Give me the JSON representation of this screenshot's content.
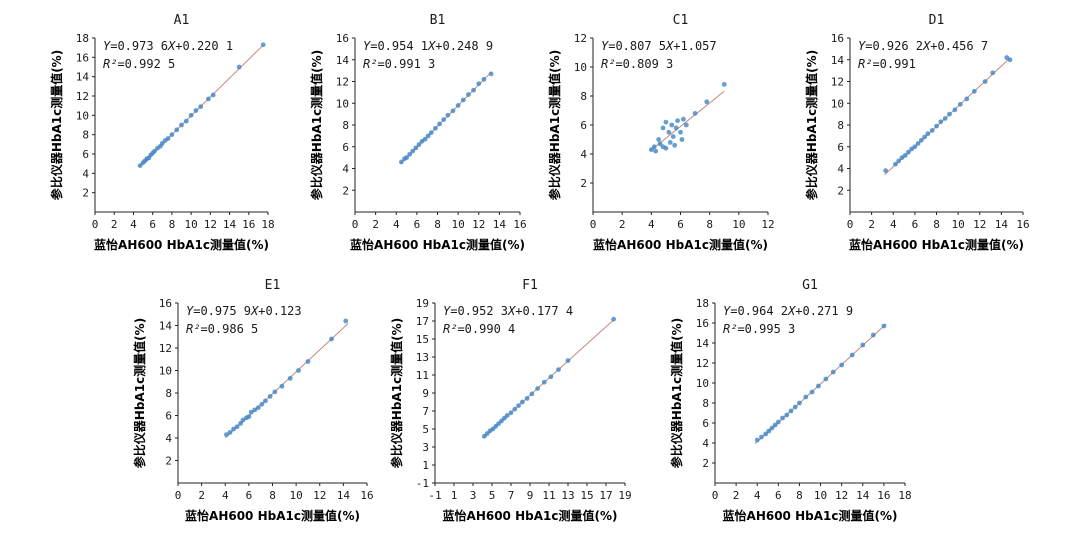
{
  "chart_data": [
    {
      "id": "A1",
      "type": "scatter",
      "title": "A1",
      "xlabel": "蓝怡AH600 HbA1c测量值(%)",
      "ylabel": "参比仪器HbA1c测量值(%)",
      "xlim": [
        0,
        18
      ],
      "ylim": [
        0,
        18
      ],
      "xticks": [
        "0",
        "2",
        "4",
        "6",
        "8",
        "10",
        "12",
        "14",
        "16",
        "18"
      ],
      "yticks": [
        "2",
        "4",
        "6",
        "8",
        "10",
        "12",
        "14",
        "16",
        "18"
      ],
      "eq_lhs": "Y",
      "eq_mid": "=0.973 6",
      "eq_x": "X",
      "eq_rhs": "+0.220 1",
      "r2_label": "R²",
      "r2_value": "=0.992 5",
      "slope": 0.9736,
      "intercept": 0.2201,
      "range": [
        4.6,
        17.5
      ],
      "points": [
        [
          4.7,
          4.8
        ],
        [
          5.0,
          5.1
        ],
        [
          5.2,
          5.3
        ],
        [
          5.4,
          5.5
        ],
        [
          5.6,
          5.6
        ],
        [
          5.8,
          5.9
        ],
        [
          6.0,
          6.1
        ],
        [
          6.2,
          6.3
        ],
        [
          6.5,
          6.6
        ],
        [
          6.8,
          6.8
        ],
        [
          7.0,
          7.1
        ],
        [
          7.3,
          7.4
        ],
        [
          7.6,
          7.6
        ],
        [
          8.0,
          8.0
        ],
        [
          8.5,
          8.5
        ],
        [
          9.0,
          9.0
        ],
        [
          9.5,
          9.4
        ],
        [
          10.0,
          10.0
        ],
        [
          10.5,
          10.5
        ],
        [
          11.0,
          10.9
        ],
        [
          11.8,
          11.7
        ],
        [
          12.3,
          12.1
        ],
        [
          15.0,
          15.0
        ],
        [
          17.5,
          17.3
        ]
      ]
    },
    {
      "id": "B1",
      "type": "scatter",
      "title": "B1",
      "xlabel": "蓝怡AH600 HbA1c测量值(%)",
      "ylabel": "参比仪器HbA1c测量值(%)",
      "xlim": [
        0,
        16
      ],
      "ylim": [
        0,
        16
      ],
      "xticks": [
        "0",
        "2",
        "4",
        "6",
        "8",
        "10",
        "12",
        "14",
        "16"
      ],
      "yticks": [
        "2",
        "4",
        "6",
        "8",
        "10",
        "12",
        "14",
        "16"
      ],
      "eq_lhs": "Y",
      "eq_mid": "=0.954 1",
      "eq_x": "X",
      "eq_rhs": "+0.248 9",
      "r2_label": "R²",
      "r2_value": "=0.991 3",
      "slope": 0.9541,
      "intercept": 0.2489,
      "range": [
        4.4,
        13.2
      ],
      "points": [
        [
          4.5,
          4.6
        ],
        [
          4.8,
          4.9
        ],
        [
          5.0,
          5.0
        ],
        [
          5.3,
          5.3
        ],
        [
          5.6,
          5.6
        ],
        [
          5.9,
          5.9
        ],
        [
          6.2,
          6.2
        ],
        [
          6.5,
          6.5
        ],
        [
          6.8,
          6.7
        ],
        [
          7.1,
          7.0
        ],
        [
          7.4,
          7.3
        ],
        [
          7.8,
          7.7
        ],
        [
          8.2,
          8.1
        ],
        [
          8.6,
          8.5
        ],
        [
          9.0,
          8.9
        ],
        [
          9.5,
          9.3
        ],
        [
          10.0,
          9.8
        ],
        [
          10.5,
          10.3
        ],
        [
          11.0,
          10.8
        ],
        [
          11.5,
          11.2
        ],
        [
          12.0,
          11.8
        ],
        [
          12.5,
          12.2
        ],
        [
          13.2,
          12.7
        ]
      ]
    },
    {
      "id": "C1",
      "type": "scatter",
      "title": "C1",
      "xlabel": "蓝怡AH600 HbA1c测量值(%)",
      "ylabel": "参比仪器HbA1c测量值(%)",
      "xlim": [
        0,
        12
      ],
      "ylim": [
        0,
        12
      ],
      "xticks": [
        "0",
        "2",
        "4",
        "6",
        "8",
        "10",
        "12"
      ],
      "yticks": [
        "2",
        "4",
        "6",
        "8",
        "10",
        "12"
      ],
      "eq_lhs": "Y",
      "eq_mid": "=0.807 5",
      "eq_x": "X",
      "eq_rhs": "+1.057",
      "r2_label": "R²",
      "r2_value": "=0.809 3",
      "slope": 0.8075,
      "intercept": 1.057,
      "range": [
        4.0,
        9.0
      ],
      "points": [
        [
          4.0,
          4.3
        ],
        [
          4.2,
          4.5
        ],
        [
          4.3,
          4.2
        ],
        [
          4.5,
          5.0
        ],
        [
          4.6,
          4.7
        ],
        [
          4.8,
          4.5
        ],
        [
          4.8,
          5.8
        ],
        [
          5.0,
          6.2
        ],
        [
          5.0,
          4.4
        ],
        [
          5.2,
          5.5
        ],
        [
          5.3,
          4.8
        ],
        [
          5.4,
          6.0
        ],
        [
          5.5,
          5.2
        ],
        [
          5.6,
          4.6
        ],
        [
          5.7,
          5.8
        ],
        [
          5.8,
          6.3
        ],
        [
          6.0,
          5.5
        ],
        [
          6.1,
          5.0
        ],
        [
          6.2,
          6.4
        ],
        [
          6.4,
          6.0
        ],
        [
          7.0,
          6.8
        ],
        [
          7.8,
          7.6
        ],
        [
          9.0,
          8.8
        ]
      ]
    },
    {
      "id": "D1",
      "type": "scatter",
      "title": "D1",
      "xlabel": "蓝怡AH600 HbA1c测量值(%)",
      "ylabel": "参比仪器HbA1c测量值(%)",
      "xlim": [
        0,
        16
      ],
      "ylim": [
        0,
        16
      ],
      "xticks": [
        "0",
        "2",
        "4",
        "6",
        "8",
        "10",
        "12",
        "14",
        "16"
      ],
      "yticks": [
        "2",
        "4",
        "6",
        "8",
        "10",
        "12",
        "14",
        "16"
      ],
      "eq_lhs": "Y",
      "eq_mid": "=0.926 2",
      "eq_x": "X",
      "eq_rhs": "+0.456 7",
      "r2_label": "R²",
      "r2_value": "=0.991",
      "slope": 0.9262,
      "intercept": 0.4567,
      "range": [
        3.2,
        14.8
      ],
      "points": [
        [
          3.3,
          3.8
        ],
        [
          4.2,
          4.4
        ],
        [
          4.5,
          4.7
        ],
        [
          4.8,
          5.0
        ],
        [
          5.1,
          5.2
        ],
        [
          5.4,
          5.5
        ],
        [
          5.7,
          5.8
        ],
        [
          6.0,
          6.0
        ],
        [
          6.3,
          6.3
        ],
        [
          6.6,
          6.6
        ],
        [
          6.9,
          6.9
        ],
        [
          7.2,
          7.2
        ],
        [
          7.6,
          7.5
        ],
        [
          8.0,
          7.9
        ],
        [
          8.4,
          8.3
        ],
        [
          8.8,
          8.6
        ],
        [
          9.2,
          9.0
        ],
        [
          9.7,
          9.4
        ],
        [
          10.2,
          9.9
        ],
        [
          10.8,
          10.4
        ],
        [
          11.5,
          11.1
        ],
        [
          12.5,
          12.0
        ],
        [
          13.2,
          12.8
        ],
        [
          14.5,
          14.2
        ],
        [
          14.8,
          14.0
        ]
      ]
    },
    {
      "id": "E1",
      "type": "scatter",
      "title": "E1",
      "xlabel": "蓝怡AH600 HbA1c测量值(%)",
      "ylabel": "参比仪器HbA1c测量值(%)",
      "xlim": [
        0,
        16
      ],
      "ylim": [
        0,
        16
      ],
      "xticks": [
        "0",
        "2",
        "4",
        "6",
        "8",
        "10",
        "12",
        "14",
        "16"
      ],
      "yticks": [
        "2",
        "4",
        "6",
        "8",
        "10",
        "12",
        "14",
        "16"
      ],
      "eq_lhs": "Y",
      "eq_mid": "=0.975 9",
      "eq_x": "X",
      "eq_rhs": "+0.123",
      "r2_label": "R²",
      "r2_value": "=0.986 5",
      "slope": 0.9759,
      "intercept": 0.123,
      "range": [
        4.0,
        14.4
      ],
      "points": [
        [
          4.1,
          4.3
        ],
        [
          4.4,
          4.5
        ],
        [
          4.7,
          4.8
        ],
        [
          5.0,
          5.0
        ],
        [
          5.3,
          5.3
        ],
        [
          5.5,
          5.6
        ],
        [
          5.8,
          5.8
        ],
        [
          6.0,
          5.9
        ],
        [
          6.2,
          6.3
        ],
        [
          6.5,
          6.5
        ],
        [
          6.8,
          6.7
        ],
        [
          7.1,
          7.0
        ],
        [
          7.4,
          7.3
        ],
        [
          7.8,
          7.7
        ],
        [
          8.2,
          8.1
        ],
        [
          8.8,
          8.6
        ],
        [
          9.5,
          9.3
        ],
        [
          10.2,
          10.0
        ],
        [
          11.0,
          10.8
        ],
        [
          13.0,
          12.8
        ],
        [
          14.2,
          14.4
        ]
      ]
    },
    {
      "id": "F1",
      "type": "scatter",
      "title": "F1",
      "xlabel": "蓝怡AH600 HbA1c测量值(%)",
      "ylabel": "参比仪器HbA1c测量值(%)",
      "xlim": [
        -1,
        19
      ],
      "ylim": [
        -1,
        19
      ],
      "xticks": [
        "-1",
        "1",
        "3",
        "5",
        "7",
        "9",
        "11",
        "13",
        "15",
        "17",
        "19"
      ],
      "yticks": [
        "-1",
        "1",
        "3",
        "5",
        "7",
        "9",
        "11",
        "13",
        "15",
        "17",
        "19"
      ],
      "eq_lhs": "Y",
      "eq_mid": "=0.952 3",
      "eq_x": "X",
      "eq_rhs": "+0.177 4",
      "r2_label": "R²",
      "r2_value": "=0.990 4",
      "slope": 0.9523,
      "intercept": 0.1774,
      "range": [
        4.0,
        17.8
      ],
      "points": [
        [
          4.2,
          4.2
        ],
        [
          4.5,
          4.5
        ],
        [
          4.8,
          4.8
        ],
        [
          5.1,
          5.0
        ],
        [
          5.4,
          5.3
        ],
        [
          5.7,
          5.6
        ],
        [
          6.0,
          5.9
        ],
        [
          6.3,
          6.2
        ],
        [
          6.6,
          6.5
        ],
        [
          7.0,
          6.8
        ],
        [
          7.4,
          7.2
        ],
        [
          7.8,
          7.6
        ],
        [
          8.2,
          8.0
        ],
        [
          8.7,
          8.4
        ],
        [
          9.2,
          8.9
        ],
        [
          9.8,
          9.5
        ],
        [
          10.5,
          10.2
        ],
        [
          11.2,
          10.8
        ],
        [
          12.0,
          11.6
        ],
        [
          13.0,
          12.6
        ],
        [
          17.8,
          17.2
        ]
      ]
    },
    {
      "id": "G1",
      "type": "scatter",
      "title": "G1",
      "xlabel": "蓝怡AH600 HbA1c测量值(%)",
      "ylabel": "参比仪器HbA1c测量值(%)",
      "xlim": [
        0,
        18
      ],
      "ylim": [
        0,
        18
      ],
      "xticks": [
        "0",
        "2",
        "4",
        "6",
        "8",
        "10",
        "12",
        "14",
        "16",
        "18"
      ],
      "yticks": [
        "2",
        "4",
        "6",
        "8",
        "10",
        "12",
        "14",
        "16",
        "18"
      ],
      "eq_lhs": "Y",
      "eq_mid": "=0.964 2",
      "eq_x": "X",
      "eq_rhs": "+0.271 9",
      "r2_label": "R²",
      "r2_value": "=0.995 3",
      "slope": 0.9642,
      "intercept": 0.2719,
      "range": [
        3.8,
        16.2
      ],
      "points": [
        [
          4.0,
          4.3
        ],
        [
          4.4,
          4.6
        ],
        [
          4.8,
          4.9
        ],
        [
          5.1,
          5.2
        ],
        [
          5.4,
          5.5
        ],
        [
          5.7,
          5.8
        ],
        [
          6.0,
          6.1
        ],
        [
          6.4,
          6.5
        ],
        [
          6.8,
          6.8
        ],
        [
          7.2,
          7.2
        ],
        [
          7.6,
          7.6
        ],
        [
          8.0,
          8.0
        ],
        [
          8.6,
          8.6
        ],
        [
          9.2,
          9.1
        ],
        [
          9.8,
          9.7
        ],
        [
          10.5,
          10.4
        ],
        [
          11.2,
          11.1
        ],
        [
          12.0,
          11.8
        ],
        [
          13.0,
          12.8
        ],
        [
          14.0,
          13.8
        ],
        [
          15.0,
          14.8
        ],
        [
          16.0,
          15.7
        ]
      ]
    }
  ]
}
